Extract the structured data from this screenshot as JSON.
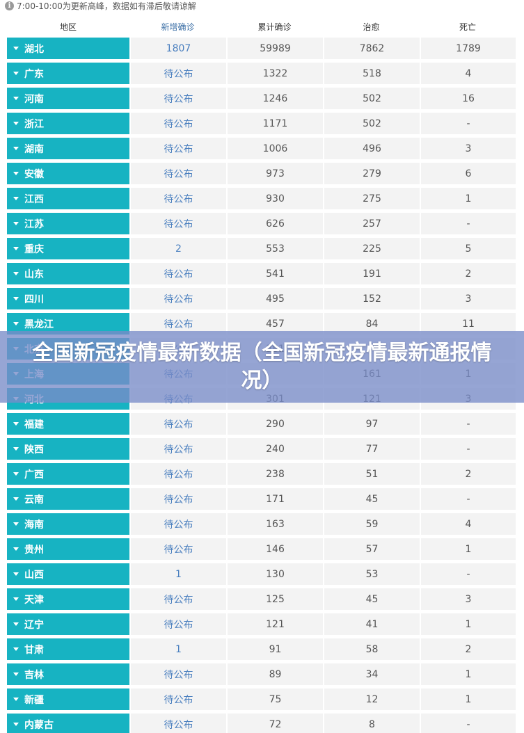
{
  "notice": {
    "icon": "info-icon",
    "text": "7:00-10:00为更新高峰，数据如有滞后敬请谅解"
  },
  "table": {
    "headers": {
      "region": "地区",
      "new_confirmed": "新增确诊",
      "cumulative": "累计确诊",
      "cured": "治愈",
      "deaths": "死亡"
    },
    "rows": [
      {
        "region": "湖北",
        "new": "1807",
        "cum": "59989",
        "cured": "7862",
        "dead": "1789"
      },
      {
        "region": "广东",
        "new": "待公布",
        "cum": "1322",
        "cured": "518",
        "dead": "4"
      },
      {
        "region": "河南",
        "new": "待公布",
        "cum": "1246",
        "cured": "502",
        "dead": "16"
      },
      {
        "region": "浙江",
        "new": "待公布",
        "cum": "1171",
        "cured": "502",
        "dead": "-"
      },
      {
        "region": "湖南",
        "new": "待公布",
        "cum": "1006",
        "cured": "496",
        "dead": "3"
      },
      {
        "region": "安徽",
        "new": "待公布",
        "cum": "973",
        "cured": "279",
        "dead": "6"
      },
      {
        "region": "江西",
        "new": "待公布",
        "cum": "930",
        "cured": "275",
        "dead": "1"
      },
      {
        "region": "江苏",
        "new": "待公布",
        "cum": "626",
        "cured": "257",
        "dead": "-"
      },
      {
        "region": "重庆",
        "new": "2",
        "cum": "553",
        "cured": "225",
        "dead": "5"
      },
      {
        "region": "山东",
        "new": "待公布",
        "cum": "541",
        "cured": "191",
        "dead": "2"
      },
      {
        "region": "四川",
        "new": "待公布",
        "cum": "495",
        "cured": "152",
        "dead": "3"
      },
      {
        "region": "黑龙江",
        "new": "待公布",
        "cum": "457",
        "cured": "84",
        "dead": "11"
      },
      {
        "region": "北京",
        "new": "待公布",
        "cum": "381",
        "cured": "",
        "dead": ""
      },
      {
        "region": "上海",
        "new": "待公布",
        "cum": "",
        "cured": "161",
        "dead": "1"
      },
      {
        "region": "河北",
        "new": "待公布",
        "cum": "301",
        "cured": "121",
        "dead": "3"
      },
      {
        "region": "福建",
        "new": "待公布",
        "cum": "290",
        "cured": "97",
        "dead": "-"
      },
      {
        "region": "陕西",
        "new": "待公布",
        "cum": "240",
        "cured": "77",
        "dead": "-"
      },
      {
        "region": "广西",
        "new": "待公布",
        "cum": "238",
        "cured": "51",
        "dead": "2"
      },
      {
        "region": "云南",
        "new": "待公布",
        "cum": "171",
        "cured": "45",
        "dead": "-"
      },
      {
        "region": "海南",
        "new": "待公布",
        "cum": "163",
        "cured": "59",
        "dead": "4"
      },
      {
        "region": "贵州",
        "new": "待公布",
        "cum": "146",
        "cured": "57",
        "dead": "1"
      },
      {
        "region": "山西",
        "new": "1",
        "cum": "130",
        "cured": "53",
        "dead": "-"
      },
      {
        "region": "天津",
        "new": "待公布",
        "cum": "125",
        "cured": "45",
        "dead": "3"
      },
      {
        "region": "辽宁",
        "new": "待公布",
        "cum": "121",
        "cured": "41",
        "dead": "1"
      },
      {
        "region": "甘肃",
        "new": "1",
        "cum": "91",
        "cured": "58",
        "dead": "2"
      },
      {
        "region": "吉林",
        "new": "待公布",
        "cum": "89",
        "cured": "34",
        "dead": "1"
      },
      {
        "region": "新疆",
        "new": "待公布",
        "cum": "75",
        "cured": "12",
        "dead": "1"
      },
      {
        "region": "内蒙古",
        "new": "待公布",
        "cum": "72",
        "cured": "8",
        "dead": "-"
      }
    ]
  },
  "banner": {
    "title": "全国新冠疫情最新数据（全国新冠疫情最新通报情况）"
  },
  "colors": {
    "region_bg": "#17b3c2",
    "cell_bg": "#f3f3f3",
    "new_text": "#4a7fbf",
    "banner_bg": "#788cc8"
  }
}
